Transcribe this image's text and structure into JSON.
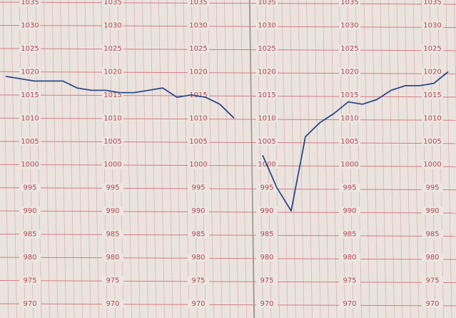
{
  "chart_data": {
    "type": "line",
    "yticks": [
      1035,
      1030,
      1025,
      1020,
      1015,
      1010,
      1005,
      1000,
      995,
      990,
      985,
      980,
      975,
      970
    ],
    "ylim": [
      970,
      1035
    ],
    "series": [
      {
        "color": "#2b4a8c",
        "values": [
          1019,
          1018.5,
          1018,
          1018,
          1018,
          1016.5,
          1016,
          1016,
          1015.5,
          1015.5,
          1016,
          1016.5,
          1014.5,
          1015,
          1014.5,
          1013,
          1010,
          null,
          1002,
          995,
          990,
          1006,
          1009,
          1011,
          1013.5,
          1013,
          1014,
          1016,
          1017,
          1017,
          1017.5,
          1020
        ]
      }
    ]
  }
}
